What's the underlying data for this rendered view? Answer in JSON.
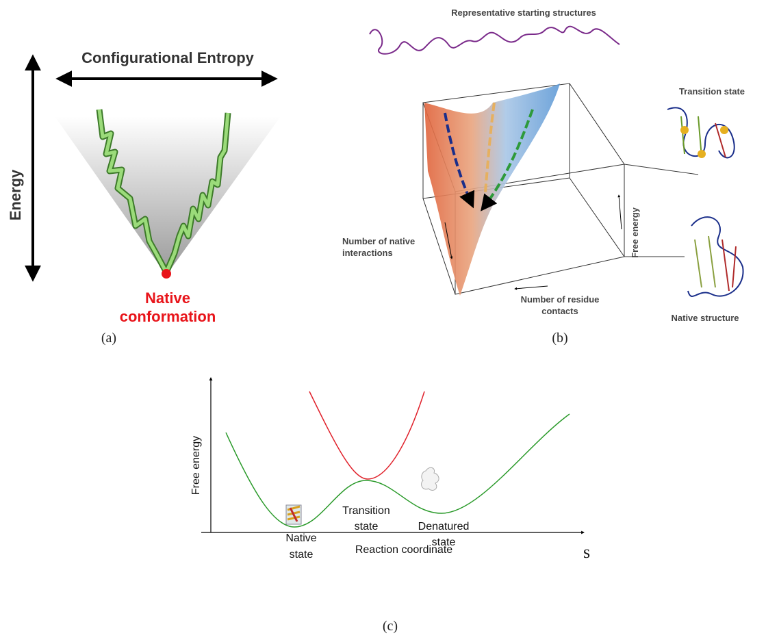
{
  "panel_a": {
    "title": "Configurational Entropy",
    "y_label": "Energy",
    "native_label": [
      "Native",
      "conformation"
    ],
    "caption": "(a)"
  },
  "panel_b": {
    "title": "Representative starting structures",
    "transition_label": "Transition state",
    "native_interactions_label": [
      "Number of native",
      "interactions"
    ],
    "free_energy_label": "Free energy",
    "residue_contacts_label": [
      "Number of residue",
      "contacts"
    ],
    "native_structure_label": "Native structure",
    "caption": "(b)"
  },
  "panel_c": {
    "y_label": "Free energy",
    "x_label": "Reaction coordinate",
    "x_symbol": "s",
    "native_label": [
      "Native",
      "state"
    ],
    "transition_label": [
      "Transition",
      "state"
    ],
    "denatured_label": [
      "Denatured",
      "state"
    ],
    "caption": "(c)"
  }
}
